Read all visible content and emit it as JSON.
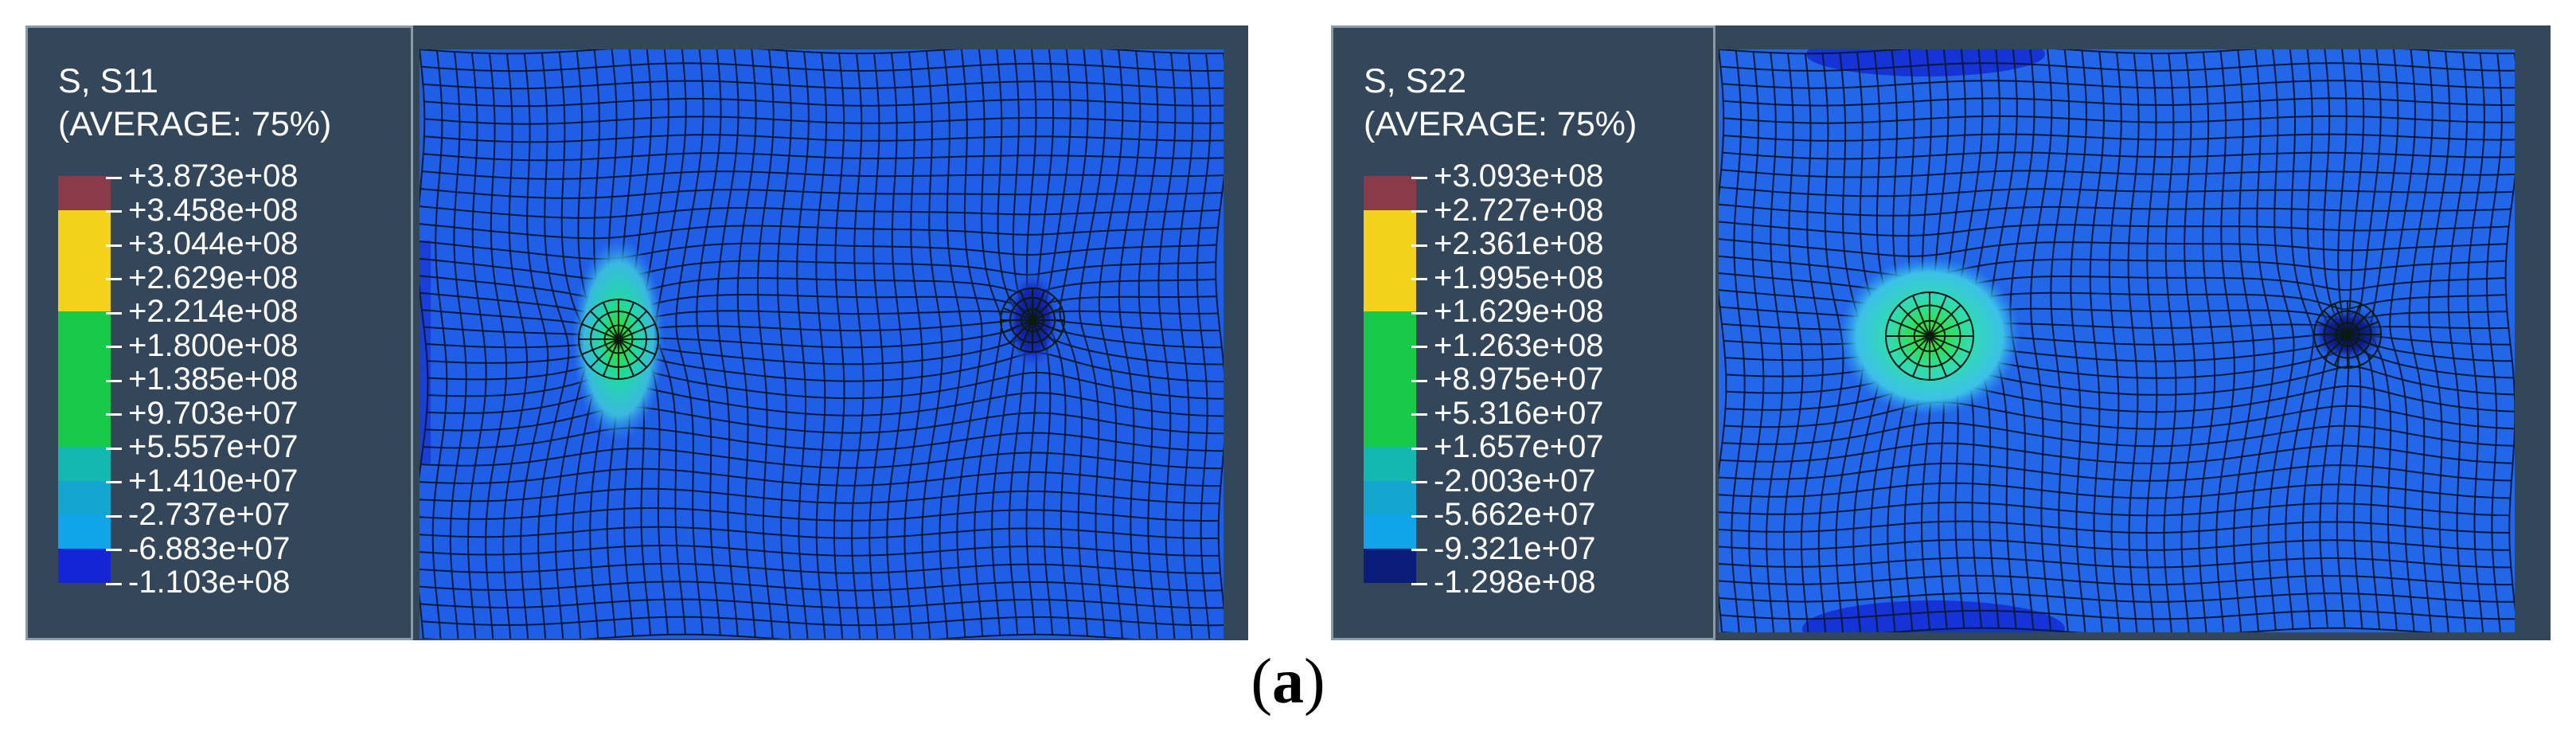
{
  "figures": [
    {
      "variable": "S, S11",
      "averaging": "(AVERAGE: 75%)",
      "legend_values": [
        "+3.873e+08",
        "+3.458e+08",
        "+3.044e+08",
        "+2.629e+08",
        "+2.214e+08",
        "+1.800e+08",
        "+1.385e+08",
        "+9.703e+07",
        "+5.557e+07",
        "+1.410e+07",
        "-2.737e+07",
        "-6.883e+07",
        "-1.103e+08"
      ],
      "legend_colors": [
        "#8b3a4a",
        "#f2d21a",
        "#f2d21a",
        "#f2d21a",
        "#19c94a",
        "#19c94a",
        "#19c94a",
        "#19c94a",
        "#13b8b0",
        "#13a7cf",
        "#12a4e8",
        "#1525d6"
      ]
    },
    {
      "variable": "S, S22",
      "averaging": "(AVERAGE: 75%)",
      "legend_values": [
        "+3.093e+08",
        "+2.727e+08",
        "+2.361e+08",
        "+1.995e+08",
        "+1.629e+08",
        "+1.263e+08",
        "+8.975e+07",
        "+5.316e+07",
        "+1.657e+07",
        "-2.003e+07",
        "-5.662e+07",
        "-9.321e+07",
        "-1.298e+08"
      ],
      "legend_colors": [
        "#8b3a4a",
        "#f2d21a",
        "#f2d21a",
        "#f2d21a",
        "#19c94a",
        "#19c94a",
        "#19c94a",
        "#19c94a",
        "#13b8b0",
        "#13a7cf",
        "#12a4e8",
        "#0b1d7a"
      ]
    }
  ],
  "caption": {
    "open": "(",
    "letter": "a",
    "close": ")"
  }
}
